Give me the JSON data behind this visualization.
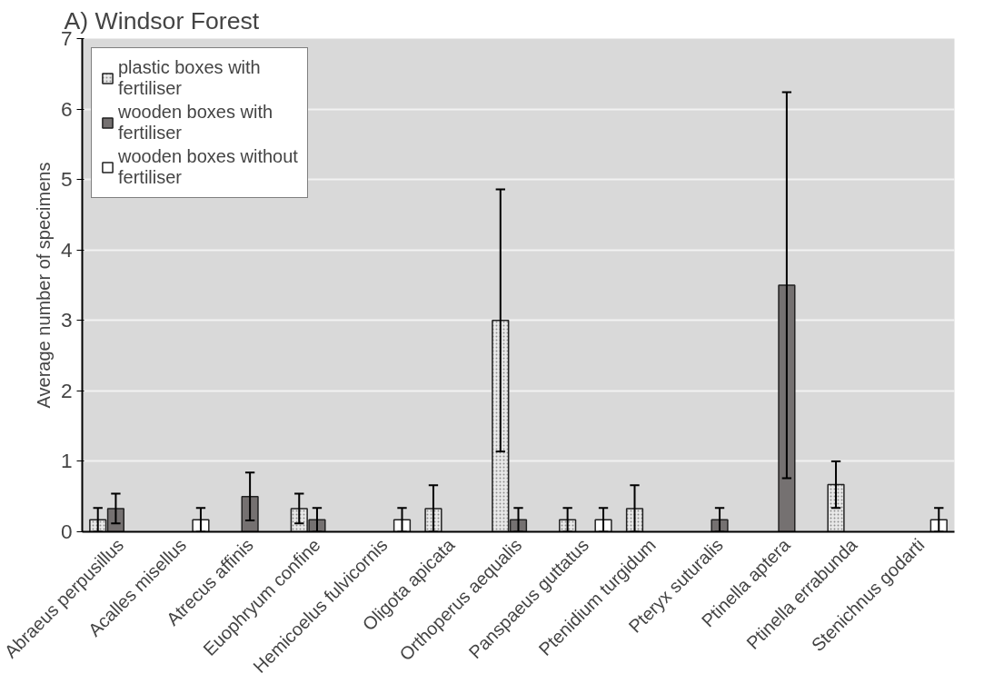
{
  "chart_data": {
    "type": "bar",
    "title": "A) Windsor Forest",
    "ylabel": "Average number of specimens",
    "categories": [
      "Abraeus perpusillus",
      "Acalles misellus",
      "Atrecus affinis",
      "Euophryum confine",
      "Hemicoelus fulvicornis",
      "Oligota apicata",
      "Orthoperus aequalis",
      "Panspaeus guttatus",
      "Ptenidium turgidum",
      "Pteryx suturalis",
      "Ptinella aptera",
      "Ptinella errabunda",
      "Stenichnus godarti"
    ],
    "series": [
      {
        "name": "plastic boxes with fertiliser",
        "color": "#e8e8e8",
        "values": [
          0.17,
          null,
          null,
          0.33,
          null,
          0.33,
          3.0,
          0.17,
          0.33,
          null,
          null,
          0.67,
          null
        ],
        "errors": [
          0.17,
          null,
          null,
          0.21,
          null,
          0.33,
          1.86,
          0.17,
          0.33,
          null,
          null,
          0.33,
          null
        ]
      },
      {
        "name": "wooden boxes with fertiliser",
        "color": "#757171",
        "values": [
          0.33,
          null,
          0.5,
          0.17,
          null,
          null,
          0.17,
          null,
          null,
          0.17,
          3.5,
          null,
          null
        ],
        "errors": [
          0.21,
          null,
          0.34,
          0.17,
          null,
          null,
          0.17,
          null,
          null,
          0.17,
          2.74,
          null,
          null
        ]
      },
      {
        "name": "wooden boxes without fertiliser",
        "color": "#ffffff",
        "values": [
          null,
          0.17,
          null,
          null,
          0.17,
          null,
          null,
          0.17,
          null,
          null,
          null,
          null,
          0.17
        ],
        "errors": [
          null,
          0.17,
          null,
          null,
          0.17,
          null,
          null,
          0.17,
          null,
          null,
          null,
          null,
          0.17
        ]
      }
    ],
    "ylim": [
      0,
      7
    ],
    "yticks": [
      0,
      1,
      2,
      3,
      4,
      5,
      6,
      7
    ],
    "grid": "y",
    "legend": "top left"
  }
}
